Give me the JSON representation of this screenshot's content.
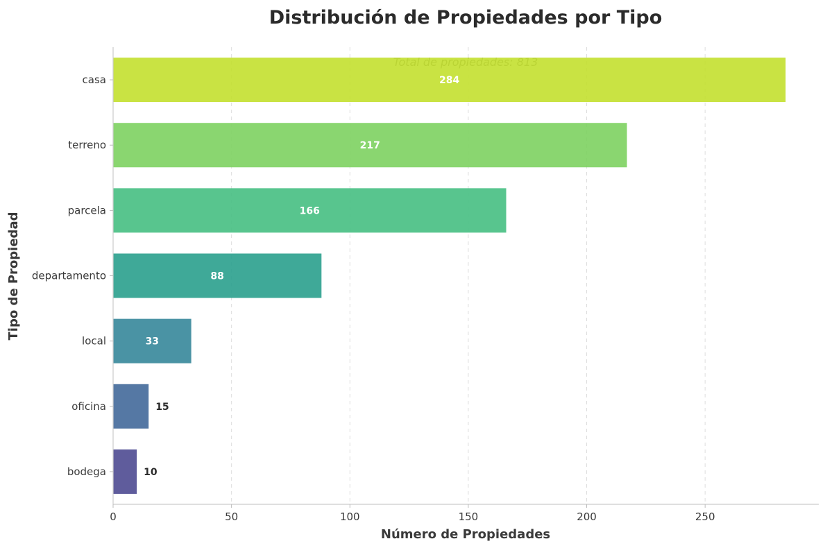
{
  "chart_data": {
    "type": "bar",
    "orientation": "horizontal",
    "title": "Distribución de Propiedades por Tipo",
    "subtitle": "Total de propiedades: 813",
    "xlabel": "Número de Propiedades",
    "ylabel": "Tipo de Propiedad",
    "categories": [
      "casa",
      "terreno",
      "parcela",
      "departamento",
      "local",
      "oficina",
      "bodega"
    ],
    "values": [
      284,
      217,
      166,
      88,
      33,
      15,
      10
    ],
    "value_labels": [
      "284",
      "217",
      "166",
      "88",
      "33",
      "15",
      "10"
    ],
    "colors": [
      "#c3e02f",
      "#7dd260",
      "#46bf82",
      "#2aa08d",
      "#36879a",
      "#43699a",
      "#4e4a91"
    ],
    "xlim": [
      0,
      298
    ],
    "xticks": [
      0,
      50,
      100,
      150,
      200,
      250
    ],
    "xtick_labels": [
      "0",
      "50",
      "100",
      "150",
      "200",
      "250"
    ],
    "grid": "x-dashed",
    "legend": "none"
  }
}
